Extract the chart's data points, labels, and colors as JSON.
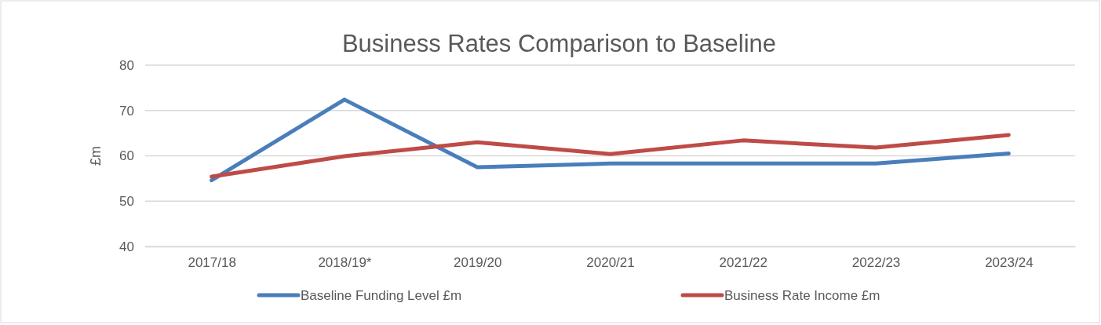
{
  "chart_data": {
    "type": "line",
    "title": "Business Rates Comparison to Baseline",
    "ylabel": "£m",
    "categories": [
      "2017/18",
      "2018/19*",
      "2019/20",
      "2020/21",
      "2021/22",
      "2022/23",
      "2023/24"
    ],
    "series": [
      {
        "name": "Baseline Funding Level £m",
        "color": "#4a7ebb",
        "values": [
          54.6,
          72.4,
          57.5,
          58.3,
          58.3,
          58.3,
          60.5
        ]
      },
      {
        "name": "Business Rate Income £m",
        "color": "#be4b48",
        "values": [
          55.4,
          59.9,
          63.0,
          60.4,
          63.4,
          61.8,
          64.6
        ]
      }
    ],
    "ylim": [
      40,
      80
    ],
    "yticks": [
      40,
      50,
      60,
      70,
      80
    ],
    "grid": "y",
    "legend": "bottom",
    "marker": "none",
    "line_style": "solid"
  }
}
